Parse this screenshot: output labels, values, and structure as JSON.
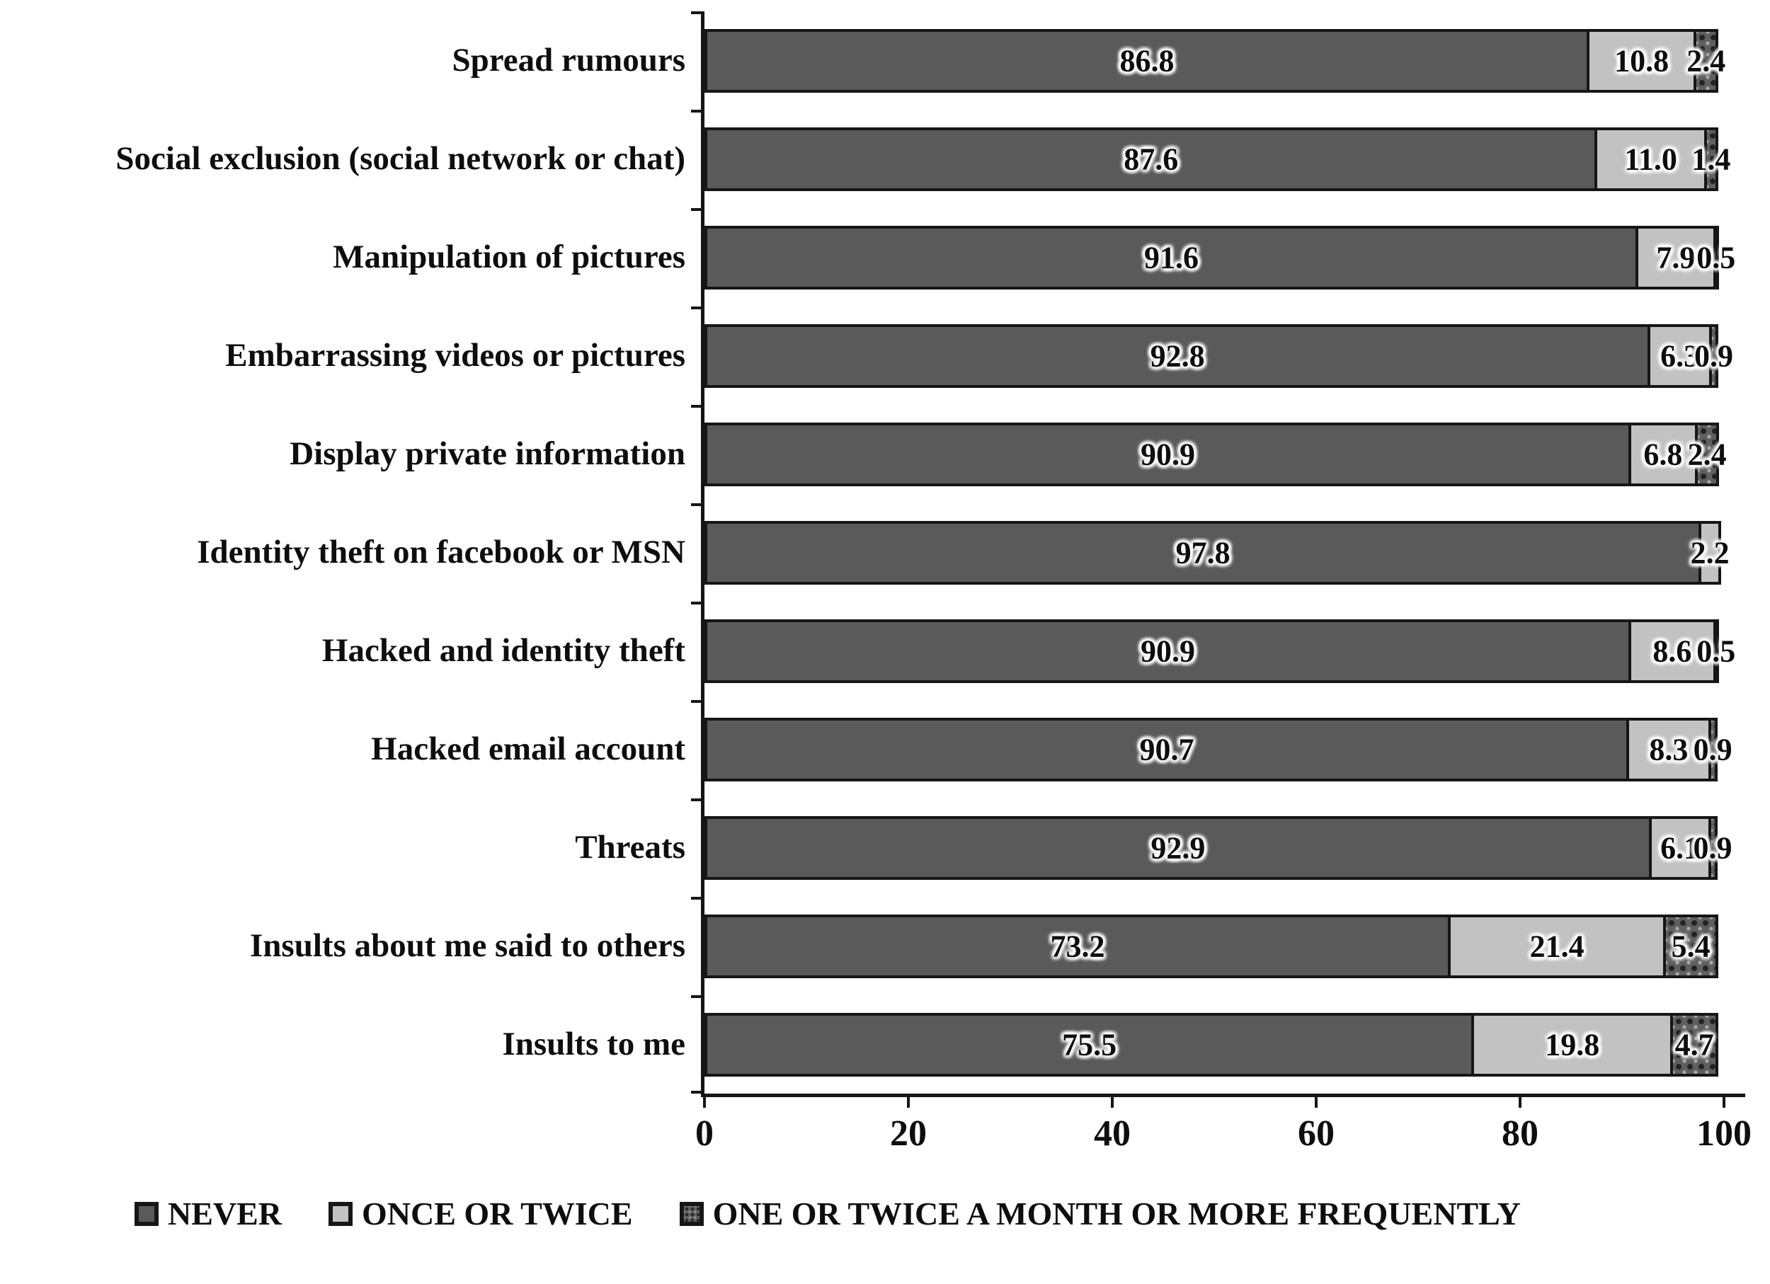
{
  "chart_data": {
    "type": "bar",
    "orientation": "horizontal",
    "stacked": true,
    "title": "",
    "xlabel": "",
    "ylabel": "",
    "xlim": [
      0,
      100
    ],
    "x_ticks": [
      "0",
      "20",
      "40",
      "60",
      "80",
      "100"
    ],
    "grid": false,
    "legend_position": "bottom",
    "categories": [
      "Spread rumours",
      "Social exclusion (social network or chat)",
      "Manipulation of pictures",
      "Embarrassing videos or pictures",
      "Display private information",
      "Identity theft on facebook or MSN",
      "Hacked and identity theft",
      "Hacked email account",
      "Threats",
      "Insults about me said to others",
      "Insults to me"
    ],
    "series": [
      {
        "key": "never",
        "name": "NEVER",
        "color": "#5a5a5a",
        "values": [
          86.8,
          87.6,
          91.6,
          92.8,
          90.9,
          97.8,
          90.9,
          90.7,
          92.9,
          73.2,
          75.5
        ]
      },
      {
        "key": "once",
        "name": "ONCE OR TWICE",
        "color": "#c2c2c2",
        "values": [
          10.8,
          11.0,
          7.9,
          6.3,
          6.8,
          2.2,
          8.6,
          8.3,
          6.1,
          21.4,
          19.8
        ]
      },
      {
        "key": "month",
        "name": "ONE OR TWICE A MONTH OR MORE FREQUENTLY",
        "color": "#5f5f5f",
        "values": [
          2.4,
          1.4,
          0.5,
          0.9,
          2.4,
          null,
          0.5,
          0.9,
          0.9,
          5.4,
          4.7
        ]
      }
    ],
    "colors": {
      "bar_border": "#161616",
      "axis": "#161616",
      "text": "#0e0e0e",
      "background": "#ffffff"
    }
  }
}
